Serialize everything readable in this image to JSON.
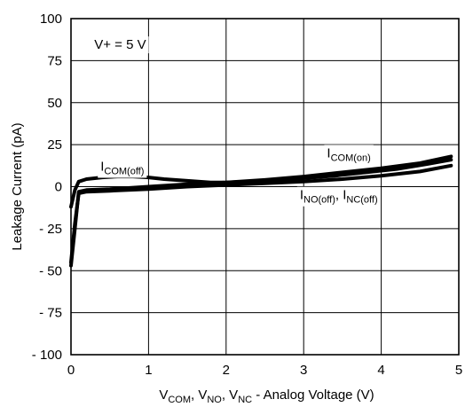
{
  "chart_data": {
    "type": "line",
    "title": "",
    "xlabel": {
      "parts": [
        {
          "t": "V"
        },
        {
          "t": "COM",
          "sub": true
        },
        {
          "t": ", V"
        },
        {
          "t": "NO",
          "sub": true
        },
        {
          "t": ", V"
        },
        {
          "t": "NC",
          "sub": true
        },
        {
          "t": " -  Analog Voltage (V)"
        }
      ]
    },
    "ylabel": "Leakage Current  (pA)",
    "xlim": [
      0,
      5
    ],
    "ylim": [
      -100,
      100
    ],
    "xticks": [
      0,
      1,
      2,
      3,
      4,
      5
    ],
    "xtick_labels": [
      "0",
      "1",
      "2",
      "3",
      "4",
      "5"
    ],
    "yticks": [
      100,
      75,
      50,
      25,
      0,
      -25,
      -50,
      -75,
      -100
    ],
    "ytick_labels": [
      "100",
      "75",
      "50",
      "25",
      "0",
      "- 25",
      "- 50",
      "- 75",
      "- 100"
    ],
    "grid": true,
    "series": [
      {
        "name": "I_COM(off)",
        "x": [
          0.0,
          0.05,
          0.1,
          0.2,
          0.4,
          0.6,
          0.8,
          1.0,
          1.2,
          1.5,
          1.8,
          2.0,
          2.3,
          2.6,
          3.0,
          3.4,
          3.8,
          4.2,
          4.6,
          4.9
        ],
        "y": [
          -12,
          -2,
          3,
          4.5,
          5.5,
          6,
          6,
          5.5,
          4.5,
          3.5,
          2.5,
          2.5,
          3,
          3.5,
          5,
          6.5,
          8.5,
          10.5,
          13.5,
          16
        ]
      },
      {
        "name": "I_COM(on)",
        "x": [
          0.0,
          0.05,
          0.1,
          0.2,
          0.5,
          1.0,
          1.5,
          2.0,
          2.5,
          3.0,
          3.5,
          4.0,
          4.5,
          4.9
        ],
        "y": [
          -47,
          -25,
          -3,
          -2,
          -1.5,
          0,
          1.5,
          2.5,
          4,
          6,
          8.5,
          11,
          14,
          18
        ]
      },
      {
        "name": "I_NO(off), I_NC(off)",
        "x": [
          0.0,
          0.05,
          0.1,
          0.2,
          0.5,
          1.0,
          1.5,
          2.0,
          2.5,
          3.0,
          3.5,
          4.0,
          4.5,
          4.9
        ],
        "y": [
          -45,
          -22,
          -4,
          -3,
          -2.5,
          -1.5,
          0,
          1,
          2,
          3,
          4.5,
          6.5,
          9,
          12.5
        ]
      }
    ],
    "annotations": [
      {
        "parts": [
          {
            "t": "V+ = 5 V"
          }
        ],
        "x": 0.3,
        "y": 82
      },
      {
        "parts": [
          {
            "t": "I"
          },
          {
            "t": "COM(off)",
            "sub": true
          }
        ],
        "x": 0.38,
        "y": 9.5
      },
      {
        "parts": [
          {
            "t": "I"
          },
          {
            "t": "COM(on)",
            "sub": true
          }
        ],
        "x": 3.3,
        "y": 17.5
      },
      {
        "parts": [
          {
            "t": "I"
          },
          {
            "t": "NO(off)",
            "sub": true
          },
          {
            "t": ", I"
          },
          {
            "t": "NC(off)",
            "sub": true
          }
        ],
        "x": 2.95,
        "y": -7.5
      }
    ]
  }
}
